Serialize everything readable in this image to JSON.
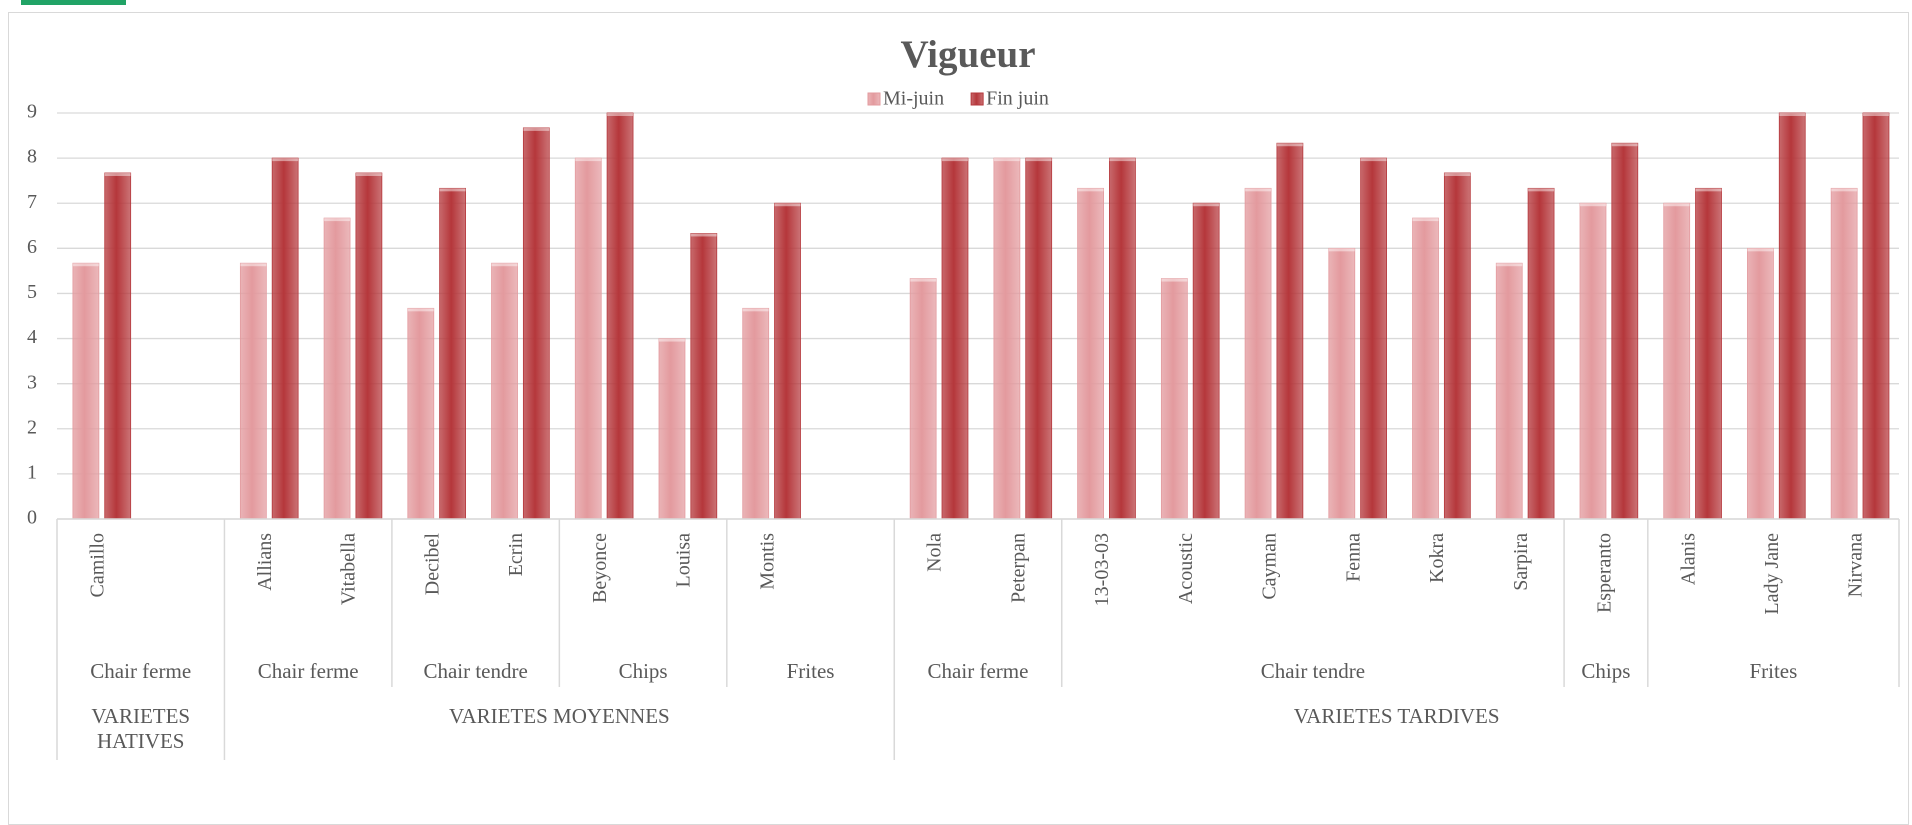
{
  "chart_data": {
    "type": "bar",
    "title": "Vigueur",
    "categories": [
      "Camillo",
      null,
      "Allians",
      "Vitabella",
      "Decibel",
      "Ecrin",
      "Beyonce",
      "Louisa",
      "Montis",
      null,
      "Nola",
      "Peterpan",
      "13-03-03",
      "Acoustic",
      "Cayman",
      "Fenna",
      "Kokra",
      "Sarpira",
      "Esperanto",
      "Alanis",
      "Lady Jane",
      "Nirvana"
    ],
    "series": [
      {
        "name": "Mi-juin",
        "color": "#e39a9e",
        "values": [
          5.67,
          null,
          5.67,
          6.67,
          4.67,
          5.67,
          8,
          4,
          4.67,
          null,
          5.33,
          8,
          7.33,
          5.33,
          7.33,
          6,
          6.67,
          5.67,
          7,
          7,
          6,
          7.33
        ]
      },
      {
        "name": "Fin juin",
        "color": "#b5373b",
        "values": [
          7.67,
          null,
          8,
          7.67,
          7.33,
          8.67,
          9,
          6.33,
          7,
          null,
          8,
          8,
          8,
          7,
          8.33,
          8,
          7.67,
          7.33,
          8.33,
          7.33,
          9,
          9
        ]
      }
    ],
    "groups": [
      {
        "label": "VARIETES HATIVES",
        "subgroups": [
          {
            "label": "Chair ferme",
            "size": 2
          }
        ]
      },
      {
        "label": "VARIETES MOYENNES",
        "subgroups": [
          {
            "label": "Chair ferme",
            "size": 2
          },
          {
            "label": "Chair tendre",
            "size": 2
          },
          {
            "label": "Chips",
            "size": 2
          },
          {
            "label": "Frites",
            "size": 2
          }
        ]
      },
      {
        "label": "VARIETES TARDIVES",
        "subgroups": [
          {
            "label": "Chair ferme",
            "size": 2
          },
          {
            "label": "Chair tendre",
            "size": 6
          },
          {
            "label": "Chips",
            "size": 1
          },
          {
            "label": "Frites",
            "size": 3
          }
        ]
      }
    ],
    "ylim": [
      0,
      9
    ],
    "yticks": [
      0,
      1,
      2,
      3,
      4,
      5,
      6,
      7,
      8,
      9
    ],
    "grid": true,
    "legend": "top"
  }
}
